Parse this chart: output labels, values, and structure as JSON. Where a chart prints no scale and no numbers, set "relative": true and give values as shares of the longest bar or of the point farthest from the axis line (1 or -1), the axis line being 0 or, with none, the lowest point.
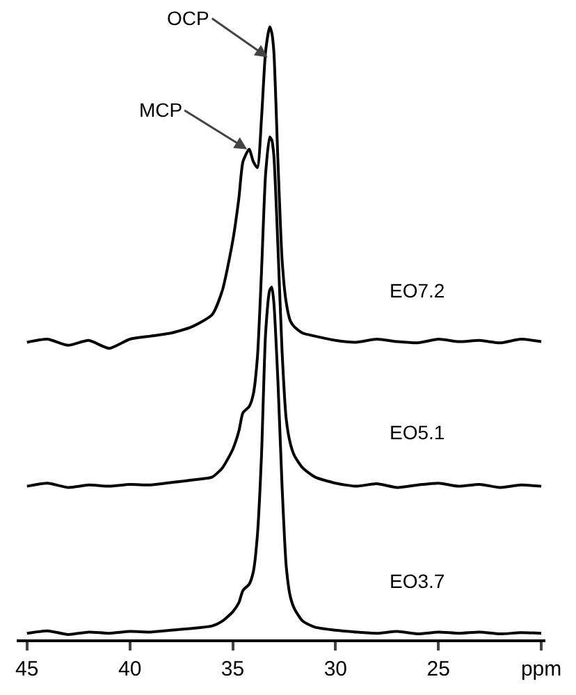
{
  "chart_data": {
    "type": "line",
    "relative": true,
    "marker": "none",
    "line_style": "solid",
    "legend": false,
    "grid": false,
    "x": [
      45,
      44,
      43,
      42,
      41,
      40,
      39,
      38,
      37,
      36,
      35.5,
      35,
      34.7,
      34.5,
      34.2,
      34,
      33.8,
      33.6,
      33.4,
      33.2,
      33.1,
      33.0,
      32.8,
      32.6,
      32.4,
      32.2,
      32,
      31.6,
      31,
      30,
      29,
      28,
      27,
      26,
      25,
      24,
      23,
      22,
      21,
      20
    ],
    "xlim": [
      45.5,
      19.8
    ],
    "xticks": [
      45,
      40,
      35,
      30,
      25,
      {
        "value": 20,
        "label": "ppm"
      }
    ],
    "series": [
      {
        "name": "EO7.2",
        "color": "#000000",
        "values": [
          0.485,
          0.49,
          0.48,
          0.488,
          0.475,
          0.49,
          0.495,
          0.5,
          0.51,
          0.53,
          0.57,
          0.65,
          0.72,
          0.78,
          0.8,
          0.78,
          0.77,
          0.85,
          0.96,
          1.0,
          0.99,
          0.96,
          0.78,
          0.62,
          0.55,
          0.52,
          0.51,
          0.5,
          0.495,
          0.488,
          0.485,
          0.49,
          0.486,
          0.484,
          0.49,
          0.486,
          0.488,
          0.484,
          0.49,
          0.486
        ]
      },
      {
        "name": "EO5.1",
        "color": "#000000",
        "values": [
          0.25,
          0.255,
          0.248,
          0.252,
          0.25,
          0.253,
          0.252,
          0.256,
          0.26,
          0.265,
          0.28,
          0.31,
          0.34,
          0.37,
          0.38,
          0.4,
          0.46,
          0.6,
          0.76,
          0.82,
          0.815,
          0.79,
          0.64,
          0.47,
          0.36,
          0.32,
          0.3,
          0.28,
          0.265,
          0.255,
          0.25,
          0.254,
          0.248,
          0.252,
          0.255,
          0.25,
          0.253,
          0.248,
          0.252,
          0.25
        ]
      },
      {
        "name": "EO3.7",
        "color": "#000000",
        "values": [
          0.01,
          0.014,
          0.008,
          0.012,
          0.01,
          0.013,
          0.012,
          0.015,
          0.018,
          0.022,
          0.03,
          0.045,
          0.06,
          0.08,
          0.09,
          0.11,
          0.17,
          0.3,
          0.5,
          0.57,
          0.575,
          0.55,
          0.42,
          0.25,
          0.12,
          0.07,
          0.05,
          0.03,
          0.02,
          0.015,
          0.012,
          0.01,
          0.013,
          0.009,
          0.012,
          0.01,
          0.012,
          0.009,
          0.011,
          0.01
        ]
      }
    ],
    "annotations": [
      {
        "text": "OCP",
        "x": 33.3,
        "y": 0.95
      },
      {
        "text": "MCP",
        "x": 34.3,
        "y": 0.8
      }
    ]
  }
}
